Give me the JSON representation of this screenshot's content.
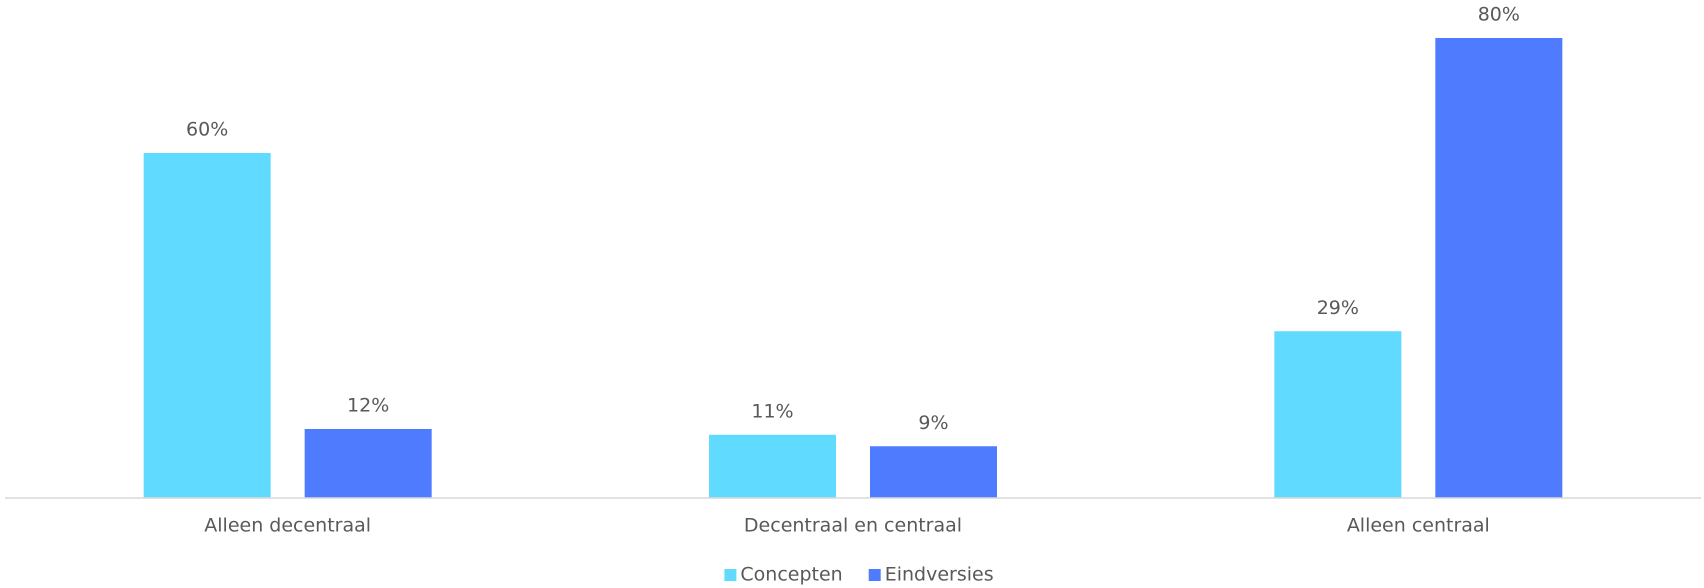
{
  "chart_data": {
    "type": "bar",
    "categories": [
      "Alleen decentraal",
      "Decentraal en centraal",
      "Alleen centraal"
    ],
    "series": [
      {
        "name": "Concepten",
        "color": "#61daff",
        "values": [
          60,
          11,
          29
        ],
        "value_labels": [
          "60%",
          "11%",
          "29%"
        ]
      },
      {
        "name": "Eindversies",
        "color": "#4f7bff",
        "values": [
          12,
          9,
          80
        ],
        "value_labels": [
          "12%",
          "9%",
          "80%"
        ]
      }
    ],
    "ylim": [
      0,
      80
    ]
  }
}
